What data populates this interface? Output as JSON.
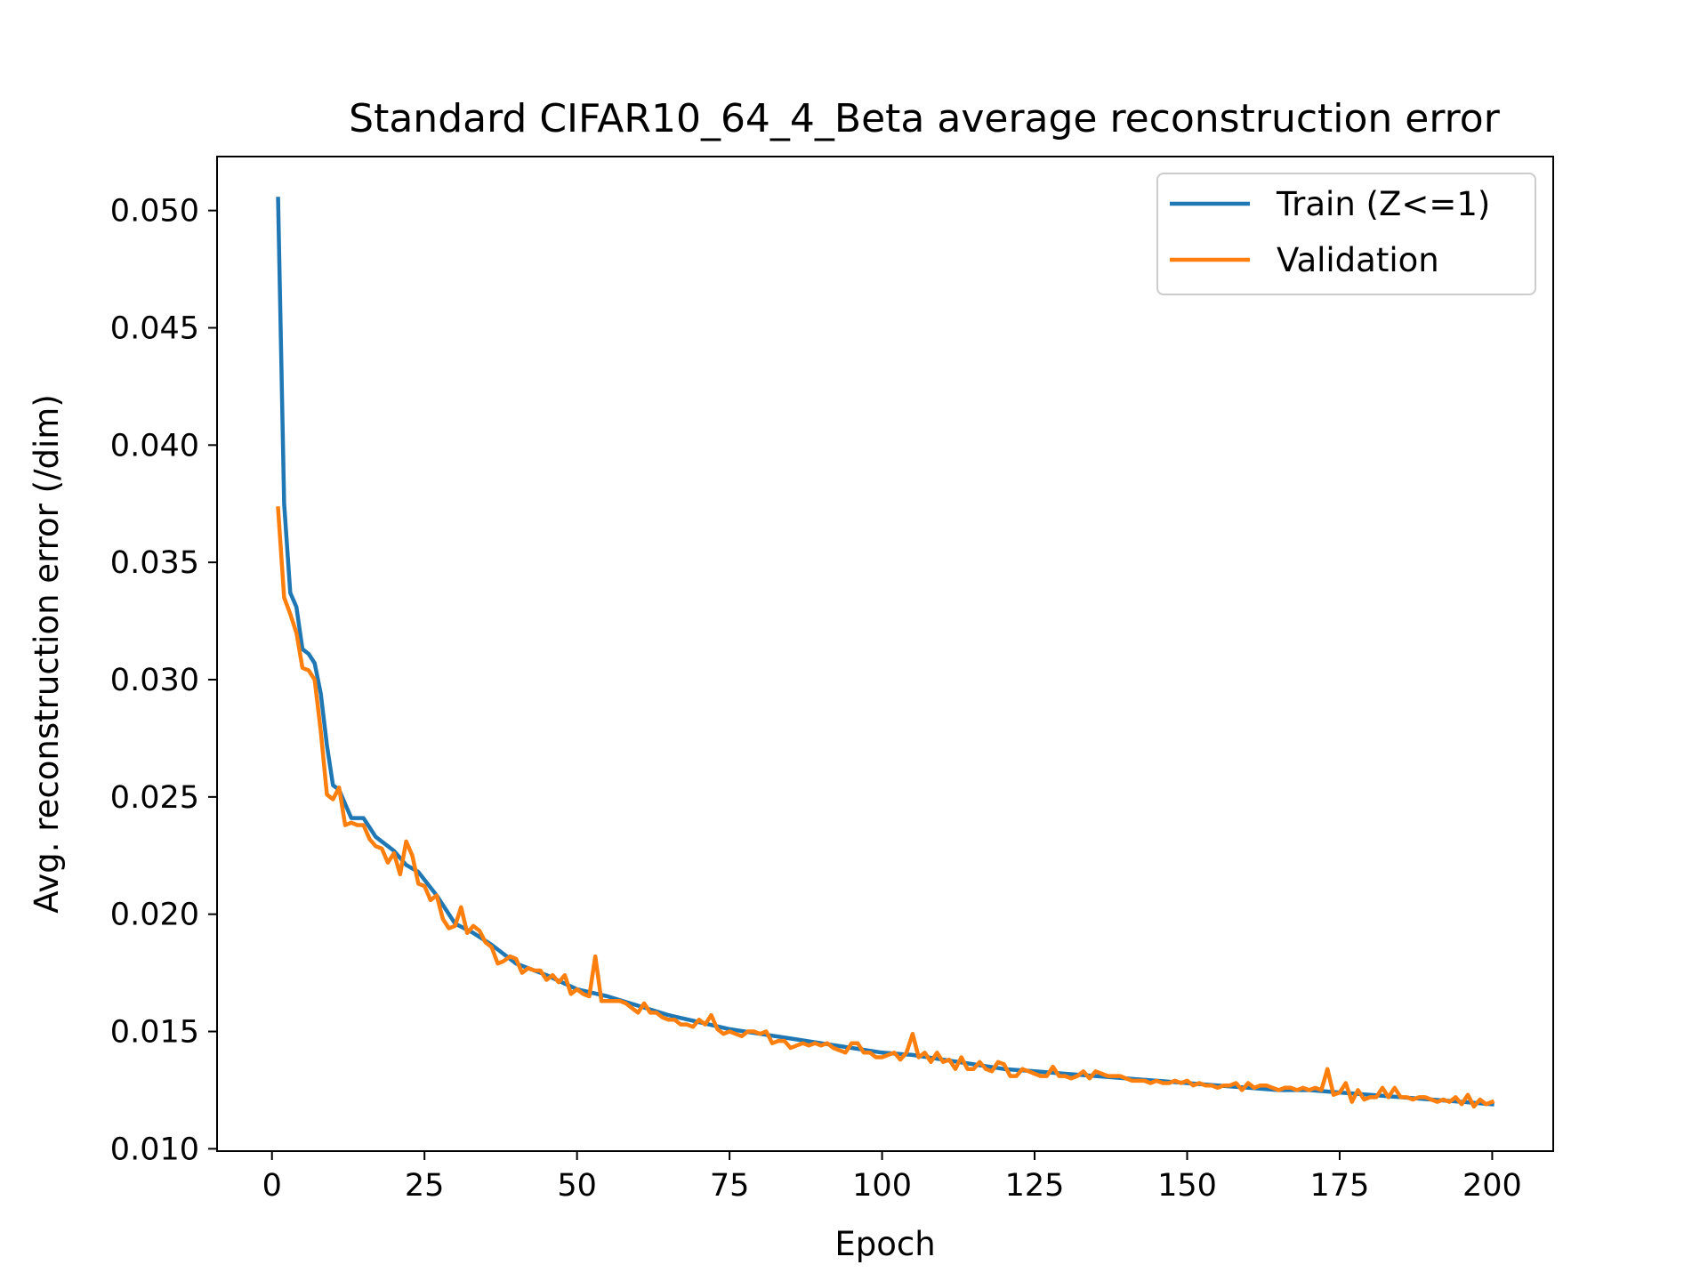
{
  "chart_data": {
    "type": "line",
    "title": "Standard CIFAR10_64_4_Beta average reconstruction error",
    "xlabel": "Epoch",
    "ylabel": "Avg. reconstruction error (/dim)",
    "xlim": [
      -9,
      210
    ],
    "ylim": [
      0.0099,
      0.0523
    ],
    "xticks": [
      "0",
      "25",
      "50",
      "75",
      "100",
      "125",
      "150",
      "175",
      "200"
    ],
    "yticks": [
      "0.010",
      "0.015",
      "0.020",
      "0.025",
      "0.030",
      "0.035",
      "0.040",
      "0.045",
      "0.050"
    ],
    "legend_position": "upper right",
    "grid": false,
    "series": [
      {
        "name": "Train (Z<=1)",
        "color": "#1f77b4",
        "x": [
          1,
          2,
          3,
          4,
          5,
          6,
          7,
          8,
          9,
          10,
          11,
          12,
          13,
          15,
          17,
          19,
          20,
          22,
          24,
          27,
          30,
          33,
          36,
          40,
          45,
          50,
          55,
          60,
          65,
          70,
          75,
          80,
          85,
          90,
          95,
          100,
          105,
          110,
          115,
          120,
          125,
          130,
          135,
          140,
          145,
          150,
          155,
          160,
          165,
          170,
          175,
          180,
          185,
          190,
          195,
          200
        ],
        "y": [
          0.0505,
          0.0375,
          0.0337,
          0.0331,
          0.0313,
          0.0311,
          0.0307,
          0.0294,
          0.0272,
          0.0255,
          0.0253,
          0.0247,
          0.0241,
          0.0241,
          0.0233,
          0.0229,
          0.0227,
          0.0221,
          0.0218,
          0.0208,
          0.0196,
          0.0192,
          0.0187,
          0.0179,
          0.0174,
          0.0168,
          0.0165,
          0.0161,
          0.0157,
          0.0154,
          0.0151,
          0.0149,
          0.0147,
          0.0145,
          0.0143,
          0.0141,
          0.014,
          0.0138,
          0.0136,
          0.0134,
          0.0133,
          0.0132,
          0.0131,
          0.013,
          0.0129,
          0.0128,
          0.0127,
          0.0126,
          0.0125,
          0.0125,
          0.0124,
          0.0123,
          0.0122,
          0.0121,
          0.012,
          0.0119
        ]
      },
      {
        "name": "Validation",
        "color": "#ff7f0e",
        "x": [
          1,
          2,
          3,
          4,
          5,
          6,
          7,
          8,
          9,
          10,
          11,
          12,
          13,
          14,
          15,
          16,
          17,
          18,
          19,
          20,
          21,
          22,
          23,
          24,
          25,
          26,
          27,
          28,
          29,
          30,
          31,
          32,
          33,
          34,
          35,
          36,
          37,
          38,
          39,
          40,
          41,
          42,
          43,
          44,
          45,
          46,
          47,
          48,
          49,
          50,
          51,
          52,
          53,
          54,
          55,
          56,
          57,
          58,
          59,
          60,
          61,
          62,
          63,
          64,
          65,
          66,
          67,
          68,
          69,
          70,
          71,
          72,
          73,
          74,
          75,
          76,
          77,
          78,
          79,
          80,
          81,
          82,
          83,
          84,
          85,
          86,
          87,
          88,
          89,
          90,
          91,
          92,
          93,
          94,
          95,
          96,
          97,
          98,
          99,
          100,
          101,
          102,
          103,
          104,
          105,
          106,
          107,
          108,
          109,
          110,
          111,
          112,
          113,
          114,
          115,
          116,
          117,
          118,
          119,
          120,
          121,
          122,
          123,
          124,
          125,
          126,
          127,
          128,
          129,
          130,
          131,
          132,
          133,
          134,
          135,
          136,
          137,
          138,
          139,
          140,
          141,
          142,
          143,
          144,
          145,
          146,
          147,
          148,
          149,
          150,
          151,
          152,
          153,
          154,
          155,
          156,
          157,
          158,
          159,
          160,
          161,
          162,
          163,
          164,
          165,
          166,
          167,
          168,
          169,
          170,
          171,
          172,
          173,
          174,
          175,
          176,
          177,
          178,
          179,
          180,
          181,
          182,
          183,
          184,
          185,
          186,
          187,
          188,
          189,
          190,
          191,
          192,
          193,
          194,
          195,
          196,
          197,
          198,
          199,
          200
        ],
        "y": [
          0.0373,
          0.0335,
          0.0328,
          0.032,
          0.0305,
          0.0304,
          0.03,
          0.0278,
          0.0251,
          0.0249,
          0.0254,
          0.0238,
          0.0239,
          0.0238,
          0.0238,
          0.0232,
          0.0229,
          0.0228,
          0.0222,
          0.0226,
          0.0217,
          0.0231,
          0.0225,
          0.0213,
          0.0212,
          0.0206,
          0.0208,
          0.0198,
          0.0194,
          0.0195,
          0.0203,
          0.0192,
          0.0195,
          0.0193,
          0.0188,
          0.0186,
          0.0179,
          0.018,
          0.0182,
          0.0181,
          0.0175,
          0.0177,
          0.0176,
          0.0176,
          0.0172,
          0.0174,
          0.0171,
          0.0174,
          0.0166,
          0.0168,
          0.0166,
          0.0165,
          0.0182,
          0.0163,
          0.0163,
          0.0163,
          0.0163,
          0.0162,
          0.016,
          0.0158,
          0.0162,
          0.0158,
          0.0158,
          0.0156,
          0.0155,
          0.0155,
          0.0153,
          0.0153,
          0.0152,
          0.0155,
          0.0153,
          0.0157,
          0.0151,
          0.0149,
          0.015,
          0.0149,
          0.0148,
          0.015,
          0.015,
          0.0149,
          0.015,
          0.0145,
          0.0146,
          0.0146,
          0.0143,
          0.0144,
          0.0145,
          0.0144,
          0.0145,
          0.0144,
          0.0145,
          0.0143,
          0.0142,
          0.0141,
          0.0145,
          0.0145,
          0.0141,
          0.0141,
          0.0139,
          0.0139,
          0.014,
          0.0141,
          0.0138,
          0.0141,
          0.0149,
          0.0139,
          0.0141,
          0.0137,
          0.0141,
          0.0137,
          0.0138,
          0.0134,
          0.0139,
          0.0134,
          0.0134,
          0.0137,
          0.0134,
          0.0133,
          0.0137,
          0.0136,
          0.0131,
          0.0131,
          0.0134,
          0.0133,
          0.0132,
          0.0131,
          0.0131,
          0.0135,
          0.0131,
          0.0131,
          0.013,
          0.0131,
          0.0133,
          0.013,
          0.0133,
          0.0132,
          0.0131,
          0.0131,
          0.0131,
          0.013,
          0.0129,
          0.0129,
          0.0129,
          0.0128,
          0.0129,
          0.0128,
          0.0128,
          0.0129,
          0.0128,
          0.0129,
          0.0127,
          0.0128,
          0.0127,
          0.0127,
          0.0126,
          0.0127,
          0.0127,
          0.0128,
          0.0125,
          0.0128,
          0.0126,
          0.0127,
          0.0127,
          0.0126,
          0.0125,
          0.0126,
          0.0126,
          0.0125,
          0.0126,
          0.0125,
          0.0126,
          0.0125,
          0.0134,
          0.0123,
          0.0124,
          0.0128,
          0.012,
          0.0125,
          0.0121,
          0.0122,
          0.0122,
          0.0126,
          0.0122,
          0.0126,
          0.0122,
          0.0122,
          0.0121,
          0.0122,
          0.0122,
          0.0121,
          0.012,
          0.0121,
          0.012,
          0.0122,
          0.0119,
          0.0123,
          0.0118,
          0.0121,
          0.0119,
          0.012
        ]
      }
    ]
  }
}
